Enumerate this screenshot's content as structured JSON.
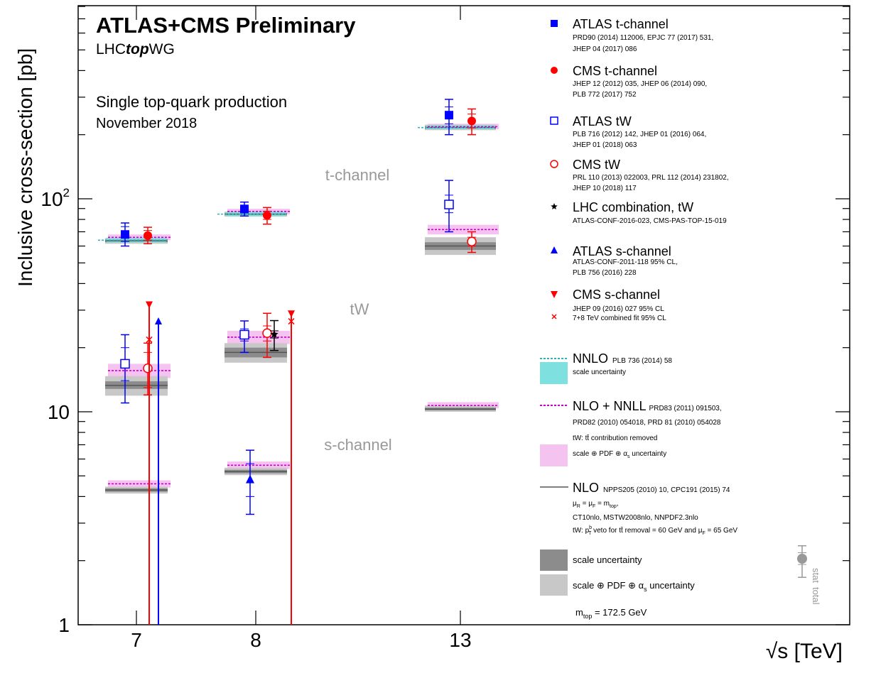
{
  "chart_data": {
    "type": "scatter",
    "title": "ATLAS+CMS Preliminary",
    "subtitle": "LHCtopWG",
    "subtitle_parts": [
      "LHC",
      "top",
      "WG"
    ],
    "info_lines": [
      "Single top-quark production",
      "November 2018"
    ],
    "ylabel": "Inclusive cross-section [pb]",
    "xlabel": "√s [TeV]",
    "ylim": [
      1,
      700
    ],
    "yscale": "log",
    "yticks": [
      {
        "v": 1,
        "label": "1"
      },
      {
        "v": 10,
        "label": "10"
      },
      {
        "v": 100,
        "label": "10",
        "sup": "2"
      }
    ],
    "xticks": [
      {
        "v": 7,
        "label": "7"
      },
      {
        "v": 8,
        "label": "8"
      },
      {
        "v": 13,
        "label": "13"
      }
    ],
    "region_labels": [
      {
        "text": "t-channel",
        "v": 130
      },
      {
        "text": "tW",
        "v": 29.5
      },
      {
        "text": "s-channel",
        "v": 6.05
      }
    ],
    "colors": {
      "atlas": "#0000ff",
      "cms": "#ff0000",
      "lhc": "#000000",
      "nnlo": "#2fb3b9",
      "nnlo_band": "#7fe0e0",
      "nlonnll": "#cc00cc",
      "nlonnll_band": "#f5c3f0",
      "nlo_dark": "#8c8c8c",
      "nlo_light": "#c8c8c8",
      "region_label": "#999999"
    },
    "theory": [
      {
        "process": "t-channel",
        "energy": 7,
        "nlo": 63.5,
        "nlo_scale": [
          62.5,
          64.5
        ],
        "nlo_pdf": [
          61.5,
          65.5
        ],
        "nnlo": 63.9,
        "nnlo_band": [
          62.3,
          65.6
        ],
        "nlonnll": 65.9,
        "nlonnll_band": [
          63.9,
          68.0
        ]
      },
      {
        "process": "t-channel",
        "energy": 8,
        "nlo": 84.7,
        "nlo_scale": [
          83.7,
          85.7
        ],
        "nlo_pdf": [
          82.5,
          87.0
        ],
        "nnlo": 84.7,
        "nnlo_band": [
          82.6,
          87.0
        ],
        "nlonnll": 87.2,
        "nlonnll_band": [
          84.6,
          89.8
        ]
      },
      {
        "process": "t-channel",
        "energy": 13,
        "nlo": 216,
        "nlo_scale": [
          213,
          219
        ],
        "nlo_pdf": [
          210,
          223
        ],
        "nnlo": 216,
        "nnlo_band": [
          212,
          221
        ],
        "nlonnll": 218,
        "nlonnll_band": [
          212,
          225
        ]
      },
      {
        "process": "tW",
        "energy": 7,
        "nlo": 13.3,
        "nlo_scale": [
          12.8,
          13.9
        ],
        "nlo_pdf": [
          11.9,
          14.7
        ],
        "nlonnll": 15.6,
        "nlonnll_band": [
          14.4,
          16.8
        ]
      },
      {
        "process": "tW",
        "energy": 8,
        "nlo": 19.0,
        "nlo_scale": [
          18.0,
          20.0
        ],
        "nlo_pdf": [
          17.0,
          21.0
        ],
        "nlonnll": 22.4,
        "nlonnll_band": [
          20.8,
          24.0
        ]
      },
      {
        "process": "tW",
        "energy": 13,
        "nlo": 60.0,
        "nlo_scale": [
          57.5,
          62.5
        ],
        "nlo_pdf": [
          54.5,
          66.0
        ],
        "nlonnll": 71.7,
        "nlonnll_band": [
          68.0,
          75.5
        ]
      },
      {
        "process": "s-channel",
        "energy": 7,
        "nlo": 4.29,
        "nlo_scale": [
          4.21,
          4.37
        ],
        "nlo_pdf": [
          4.13,
          4.45
        ],
        "nlonnll": 4.59,
        "nlonnll_band": [
          4.41,
          4.77
        ]
      },
      {
        "process": "s-channel",
        "energy": 8,
        "nlo": 5.24,
        "nlo_scale": [
          5.14,
          5.34
        ],
        "nlo_pdf": [
          5.04,
          5.46
        ],
        "nlonnll": 5.61,
        "nlonnll_band": [
          5.38,
          5.84
        ]
      },
      {
        "process": "s-channel",
        "energy": 13,
        "nlo": 10.3,
        "nlo_scale": [
          10.15,
          10.45
        ],
        "nlo_pdf": [
          10.0,
          10.7
        ],
        "nlonnll": 10.7,
        "nlonnll_band": [
          10.4,
          11.1
        ]
      }
    ],
    "measurements": [
      {
        "series": "ATLAS t-channel",
        "energy": 7,
        "value": 68,
        "stat": [
          63,
          74
        ],
        "total": [
          60,
          77
        ],
        "marker": "square-filled",
        "color": "atlas"
      },
      {
        "series": "CMS t-channel",
        "energy": 7,
        "value": 67.2,
        "stat": [
          64,
          71
        ],
        "total": [
          61.5,
          73.5
        ],
        "marker": "circle-filled",
        "color": "cms"
      },
      {
        "series": "ATLAS t-channel",
        "energy": 8,
        "value": 89.6,
        "stat": [
          86,
          93
        ],
        "total": [
          83,
          96.5
        ],
        "marker": "square-filled",
        "color": "atlas"
      },
      {
        "series": "CMS t-channel",
        "energy": 8,
        "value": 83.6,
        "stat": [
          80,
          87.5
        ],
        "total": [
          76,
          91
        ],
        "marker": "circle-filled",
        "color": "cms"
      },
      {
        "series": "ATLAS t-channel",
        "energy": 13,
        "value": 247,
        "stat": [
          225,
          270
        ],
        "total": [
          200,
          293
        ],
        "marker": "square-filled",
        "color": "atlas"
      },
      {
        "series": "CMS t-channel",
        "energy": 13,
        "value": 232,
        "stat": [
          215,
          250
        ],
        "total": [
          200,
          264
        ],
        "marker": "circle-filled",
        "color": "cms"
      },
      {
        "series": "ATLAS tW",
        "energy": 7,
        "value": 16.8,
        "stat": [
          14,
          20
        ],
        "total": [
          11,
          23
        ],
        "marker": "square-open",
        "color": "atlas"
      },
      {
        "series": "CMS tW",
        "energy": 7,
        "value": 16.0,
        "stat": [
          13,
          19
        ],
        "total": [
          12,
          21
        ],
        "marker": "circle-open",
        "color": "cms"
      },
      {
        "series": "ATLAS tW",
        "energy": 8,
        "value": 23.0,
        "stat": [
          21.5,
          24.5
        ],
        "total": [
          19,
          26.7
        ],
        "marker": "square-open",
        "color": "atlas"
      },
      {
        "series": "CMS tW",
        "energy": 8,
        "value": 23.4,
        "stat": [
          21.5,
          25.3
        ],
        "total": [
          18,
          29
        ],
        "marker": "circle-open",
        "color": "cms"
      },
      {
        "series": "LHC combination, tW",
        "energy": 8,
        "value": 23.1,
        "stat": [
          22.2,
          24.0
        ],
        "total": [
          19.4,
          26.8
        ],
        "marker": "star",
        "color": "lhc"
      },
      {
        "series": "ATLAS tW",
        "energy": 13,
        "value": 94,
        "stat": [
          86,
          104
        ],
        "total": [
          70,
          122
        ],
        "marker": "square-open",
        "color": "atlas"
      },
      {
        "series": "CMS tW",
        "energy": 13,
        "value": 63,
        "stat": [
          60,
          66
        ],
        "total": [
          56,
          70
        ],
        "marker": "circle-open",
        "color": "cms"
      },
      {
        "series": "ATLAS s-channel",
        "energy": 8,
        "value": 4.8,
        "stat": [
          4.0,
          5.7
        ],
        "total": [
          3.3,
          6.6
        ],
        "marker": "triangle-up",
        "color": "atlas"
      }
    ],
    "limits": [
      {
        "series": "CMS s-channel",
        "energy": 7,
        "value": 32,
        "marker": "triangle-down",
        "color": "cms"
      },
      {
        "series": "ATLAS s-channel",
        "energy": 7,
        "value": 26.5,
        "marker": "triangle-up",
        "color": "atlas"
      },
      {
        "series": "CMS s-channel",
        "energy": 8,
        "value": 29,
        "marker": "triangle-down",
        "color": "cms"
      },
      {
        "series": "7+8 TeV combined fit 95% CL",
        "energy": 7,
        "value": 21.8,
        "marker": "cross",
        "color": "cms"
      },
      {
        "series": "7+8 TeV combined fit 95% CL",
        "energy": 8,
        "value": 26.6,
        "marker": "cross",
        "color": "cms"
      }
    ],
    "legend": {
      "placement": "right",
      "entries": [
        {
          "key": "atlas_t",
          "label": "ATLAS t-channel",
          "refs": [
            "PRD90 (2014) 112006, EPJC 77 (2017) 531,",
            "JHEP 04 (2017) 086"
          ]
        },
        {
          "key": "cms_t",
          "label": "CMS t-channel",
          "refs": [
            "JHEP 12 (2012) 035, JHEP 06 (2014) 090,",
            "PLB 772 (2017) 752"
          ]
        },
        {
          "key": "atlas_tw",
          "label": "ATLAS tW",
          "refs": [
            "PLB 716 (2012) 142, JHEP 01 (2016) 064,",
            "JHEP 01 (2018) 063"
          ]
        },
        {
          "key": "cms_tw",
          "label": "CMS tW",
          "refs": [
            "PRL 110 (2013) 022003, PRL 112 (2014) 231802,",
            "JHEP 10 (2018) 117"
          ]
        },
        {
          "key": "lhc_tw",
          "label": "LHC combination, tW",
          "refs": [
            "ATLAS-CONF-2016-023, CMS-PAS-TOP-15-019"
          ]
        },
        {
          "key": "atlas_s",
          "label": "ATLAS s-channel",
          "refs": [
            "ATLAS-CONF-2011-118 95% CL,",
            "PLB 756 (2016) 228"
          ]
        },
        {
          "key": "cms_s",
          "label": "CMS s-channel",
          "refs": [
            "JHEP 09 (2016) 027 95% CL"
          ]
        },
        {
          "key": "comb_s",
          "label": "7+8 TeV combined fit 95% CL"
        }
      ],
      "theory": {
        "nnlo_label": "NNLO",
        "nnlo_ref": "PLB 736 (2014) 58",
        "nnlo_band": "scale uncertainty",
        "nlonnll_label": "NLO + NNLL",
        "nlonnll_refs": [
          "PRD83 (2011) 091503,",
          "PRD82 (2010) 054018, PRD 81 (2010) 054028"
        ],
        "nlonnll_note": "tW: tt̄ contribution removed",
        "nlonnll_band": "scale ⊕ PDF ⊕ α",
        "nlonnll_band_sub": "s",
        "nlonnll_band_tail": " uncertainty",
        "nlo_label": "NLO",
        "nlo_ref": "NPPS205 (2010) 10, CPC191 (2015) 74",
        "nlo_mu": {
          "a": "μ",
          "a_sub": "R",
          "b": " = μ",
          "b_sub": "F",
          "c": " = m",
          "c_sub": "top",
          "d": ","
        },
        "nlo_pdfs": "CT10nlo, MSTW2008nlo, NNPDF2.3nlo",
        "nlo_veto": {
          "a": "tW: p",
          "a_sup": "b",
          "a_sub": "T",
          "b": " veto for tt̄ removal = 60 GeV and μ",
          "b_sub": "F",
          "c": " = 65 GeV"
        },
        "dark_band": "scale uncertainty",
        "light_band": "scale ⊕ PDF ⊕ α",
        "light_band_sub": "s",
        "light_band_tail": " uncertainty"
      },
      "mtop": {
        "a": "m",
        "sub": "top",
        "b": " = 172.5 GeV"
      },
      "stat_total": [
        "stat",
        "total"
      ],
      "example_point": {
        "value": 2.0,
        "stat": [
          1.75,
          2.3
        ],
        "total": [
          1.3,
          2.7
        ]
      }
    }
  }
}
